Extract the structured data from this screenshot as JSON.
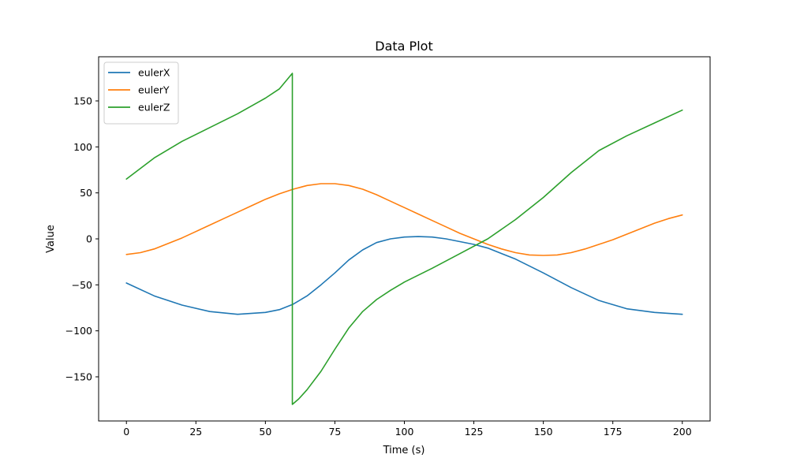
{
  "chart_data": {
    "type": "line",
    "title": "Data Plot",
    "xlabel": "Time (s)",
    "ylabel": "Value",
    "xlim": [
      -10,
      210
    ],
    "ylim": [
      -198,
      198
    ],
    "xticks": [
      0,
      25,
      50,
      75,
      100,
      125,
      150,
      175,
      200
    ],
    "yticks": [
      -150,
      -100,
      -50,
      0,
      50,
      100,
      150
    ],
    "xtick_labels": [
      "0",
      "25",
      "50",
      "75",
      "100",
      "125",
      "150",
      "175",
      "200"
    ],
    "ytick_labels": [
      "−150",
      "−100",
      "−50",
      "0",
      "50",
      "100",
      "150"
    ],
    "grid": false,
    "legend_position": "upper-left",
    "series": [
      {
        "name": "eulerX",
        "color": "#1f77b4",
        "x": [
          0,
          10,
          20,
          30,
          40,
          50,
          55,
          60,
          65,
          70,
          75,
          80,
          85,
          90,
          95,
          100,
          105,
          110,
          115,
          120,
          125,
          130,
          140,
          150,
          160,
          170,
          180,
          190,
          200
        ],
        "y": [
          -48,
          -62,
          -72,
          -79,
          -82,
          -80,
          -77,
          -71,
          -62,
          -50,
          -37,
          -23,
          -12,
          -4,
          0,
          2,
          2.5,
          2,
          0,
          -3,
          -6,
          -10,
          -22,
          -37,
          -53,
          -67,
          -76,
          -80,
          -82
        ]
      },
      {
        "name": "eulerY",
        "color": "#ff7f0e",
        "x": [
          0,
          5,
          10,
          15,
          20,
          25,
          30,
          35,
          40,
          45,
          50,
          55,
          60,
          65,
          70,
          75,
          80,
          85,
          90,
          95,
          100,
          105,
          110,
          115,
          120,
          125,
          130,
          135,
          140,
          145,
          150,
          155,
          160,
          165,
          170,
          175,
          180,
          185,
          190,
          195,
          200
        ],
        "y": [
          -17,
          -15,
          -11,
          -5,
          1,
          8,
          15,
          22,
          29,
          36,
          43,
          49,
          54,
          58,
          60,
          60,
          58,
          54,
          48,
          41,
          34,
          27,
          20,
          13,
          6,
          0,
          -6,
          -11,
          -15,
          -17.5,
          -18,
          -17.5,
          -15,
          -11,
          -6,
          -1,
          5,
          11,
          17,
          22,
          26
        ]
      },
      {
        "name": "eulerZ",
        "color": "#2ca02c",
        "x": [
          0,
          10,
          20,
          30,
          40,
          50,
          55,
          59.7,
          59.7,
          62,
          65,
          70,
          75,
          80,
          85,
          90,
          95,
          100,
          110,
          120,
          130,
          140,
          150,
          160,
          170,
          180,
          190,
          200
        ],
        "y": [
          65,
          88,
          106,
          121,
          136,
          153,
          163,
          180,
          -180,
          -174,
          -164,
          -144,
          -120,
          -97,
          -79,
          -66,
          -56,
          -47,
          -32,
          -16,
          0,
          21,
          45,
          72,
          96,
          112,
          126,
          140
        ]
      }
    ]
  }
}
